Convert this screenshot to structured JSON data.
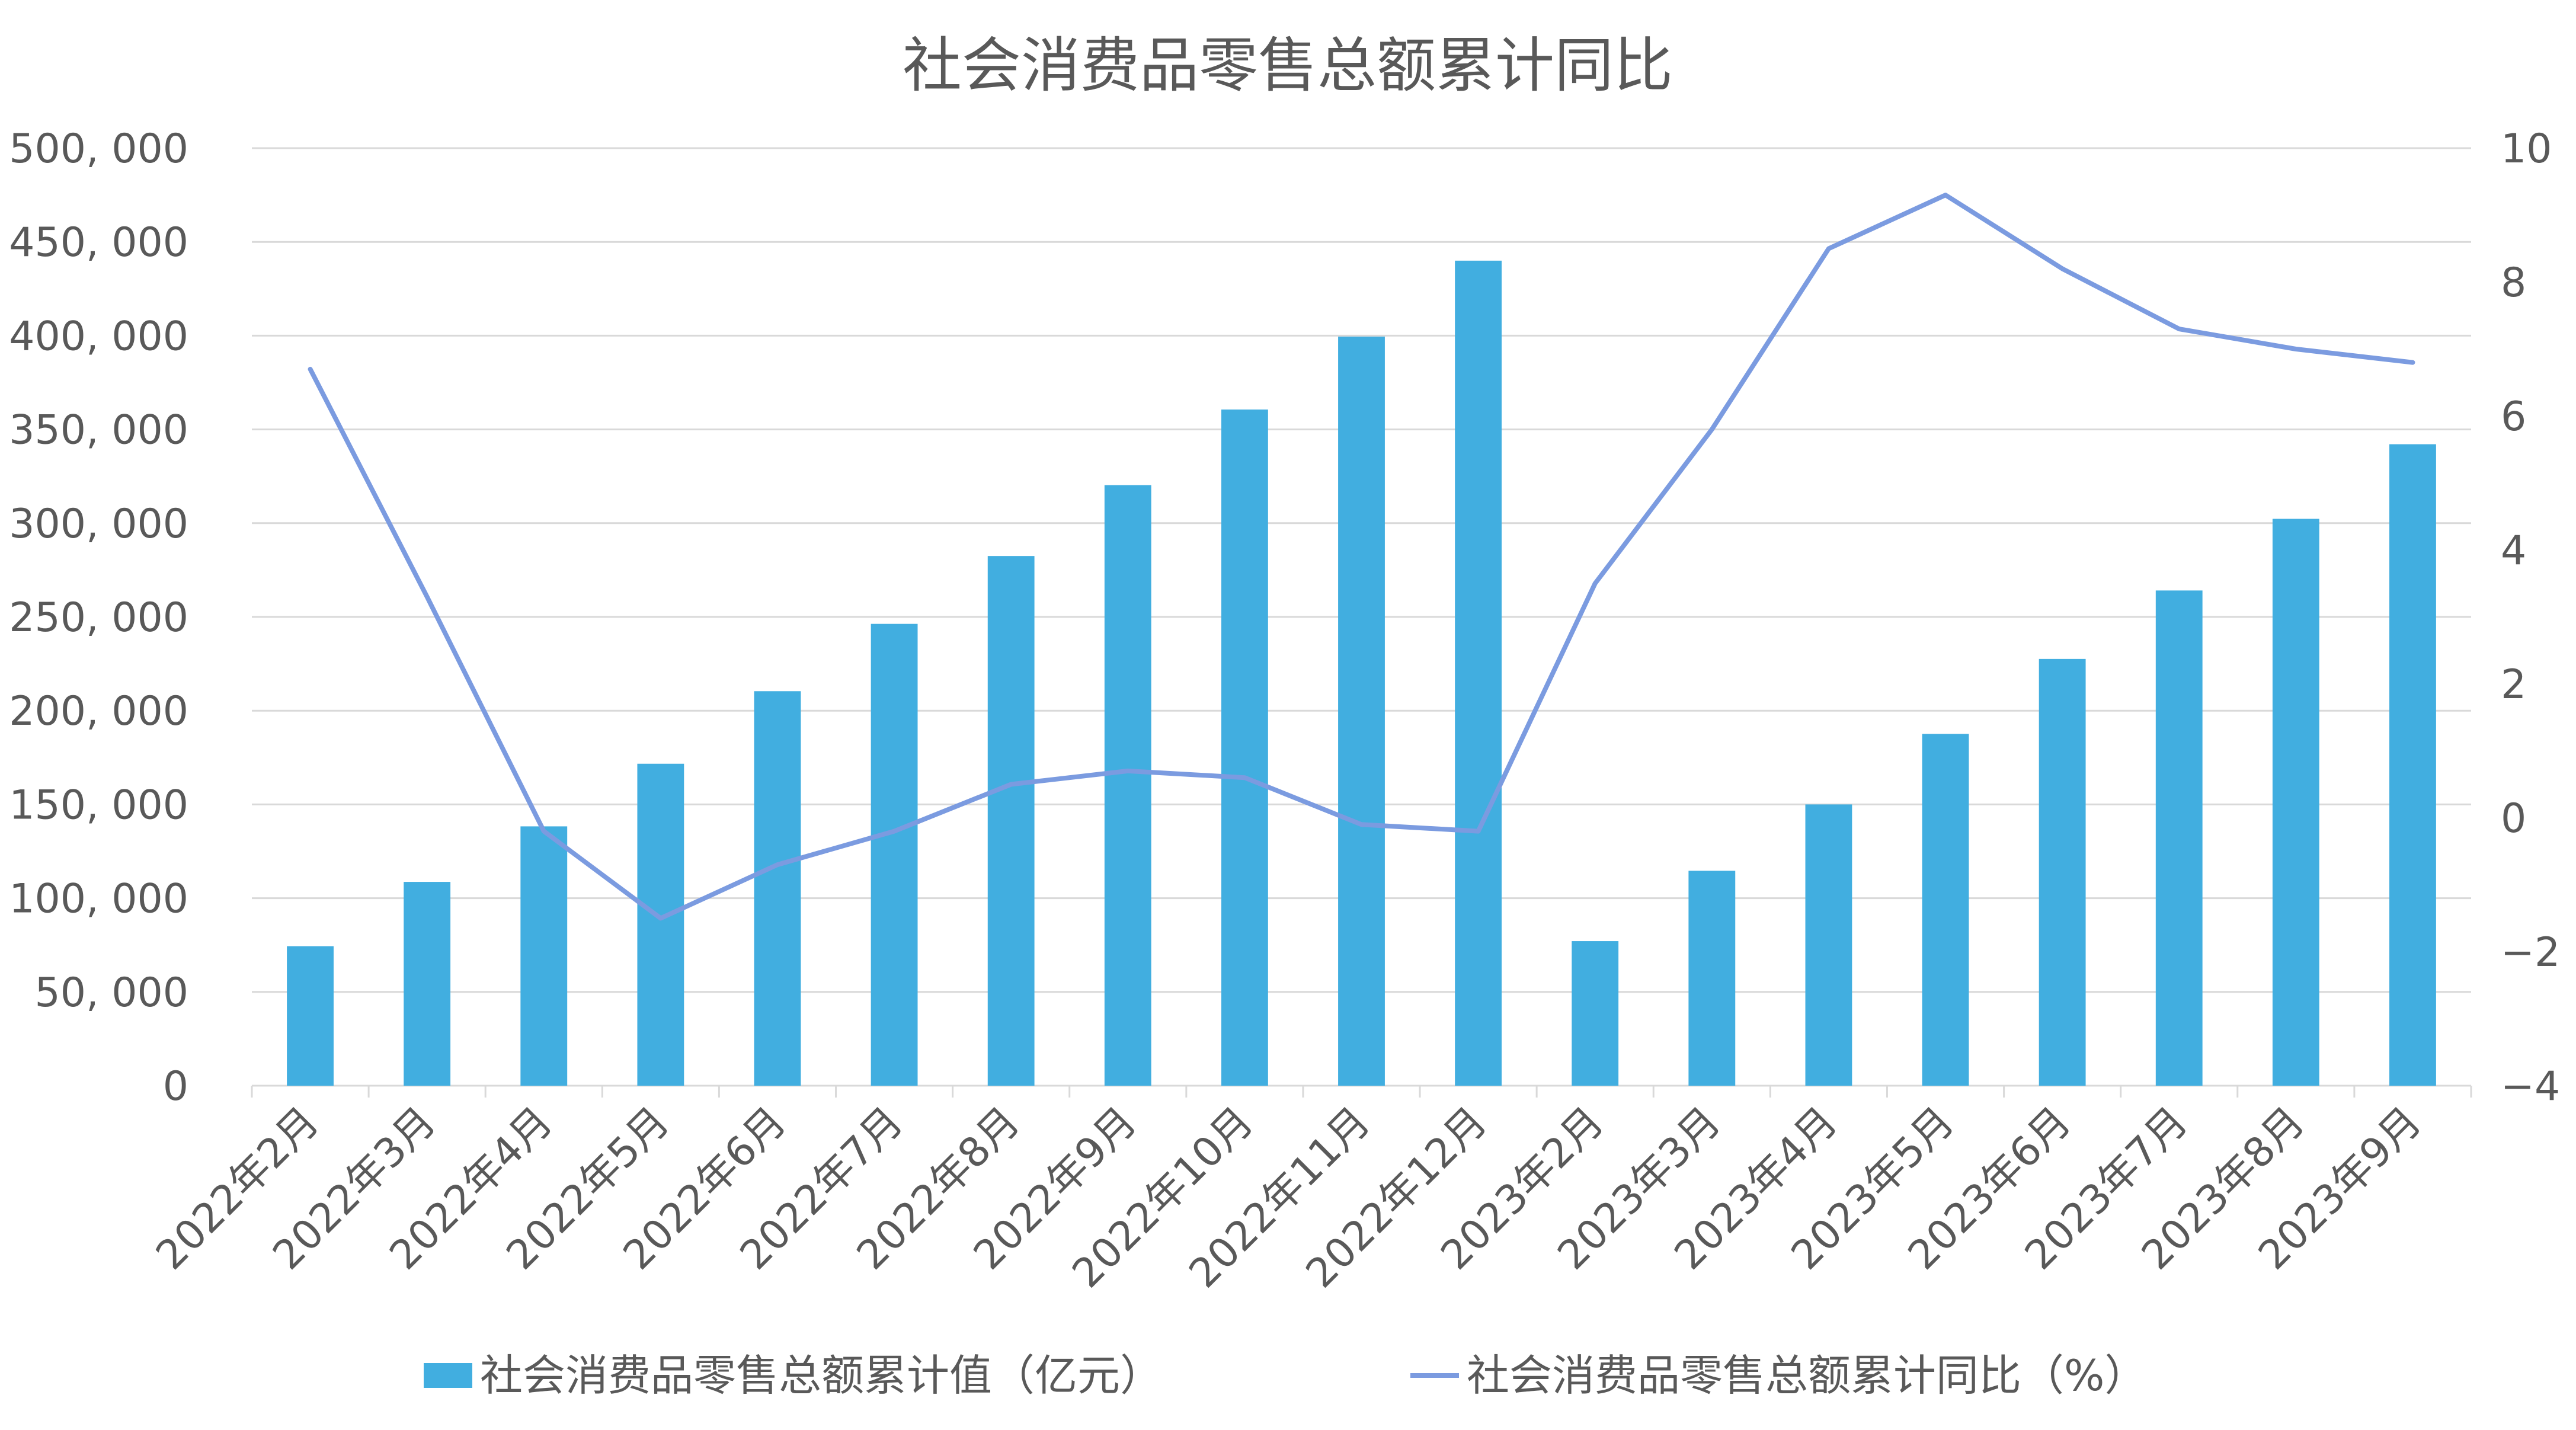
{
  "chart_data": {
    "type": "bar",
    "title": "社会消费品零售总额累计同比",
    "categories": [
      "2022年2月",
      "2022年3月",
      "2022年4月",
      "2022年5月",
      "2022年6月",
      "2022年7月",
      "2022年8月",
      "2022年9月",
      "2022年10月",
      "2022年11月",
      "2022年12月",
      "2023年2月",
      "2023年3月",
      "2023年4月",
      "2023年5月",
      "2023年6月",
      "2023年7月",
      "2023年8月",
      "2023年9月"
    ],
    "series": [
      {
        "name": "社会消费品零售总额累计值（亿元）",
        "type": "bar",
        "axis": "left",
        "color": "#41aee0",
        "values": [
          74400,
          108700,
          138300,
          171700,
          210400,
          246300,
          282500,
          320300,
          360600,
          399500,
          440000,
          77100,
          114600,
          150000,
          187600,
          227600,
          264100,
          302300,
          342100
        ]
      },
      {
        "name": "社会消费品零售总额累计同比（%）",
        "type": "line",
        "axis": "right",
        "color": "#7b9be0",
        "values": [
          6.7,
          3.3,
          -0.2,
          -1.5,
          -0.7,
          -0.2,
          0.5,
          0.7,
          0.6,
          -0.1,
          -0.2,
          3.5,
          5.8,
          8.5,
          9.3,
          8.2,
          7.3,
          7.0,
          6.8
        ]
      }
    ],
    "y_left": {
      "lim": [
        0,
        500000
      ],
      "ticks": [
        0,
        50000,
        100000,
        150000,
        200000,
        250000,
        300000,
        350000,
        400000,
        450000,
        500000
      ],
      "tick_labels": [
        "0",
        "50, 000",
        "100, 000",
        "150, 000",
        "200, 000",
        "250, 000",
        "300, 000",
        "350, 000",
        "400, 000",
        "450, 000",
        "500, 000"
      ]
    },
    "y_right": {
      "lim": [
        -4,
        10
      ],
      "ticks": [
        -4,
        -2,
        0,
        2,
        4,
        6,
        8,
        10
      ],
      "tick_labels": [
        "−4",
        "−2",
        "0",
        "2",
        "4",
        "6",
        "8",
        "10"
      ]
    },
    "grid": true,
    "legend_position": "bottom"
  }
}
